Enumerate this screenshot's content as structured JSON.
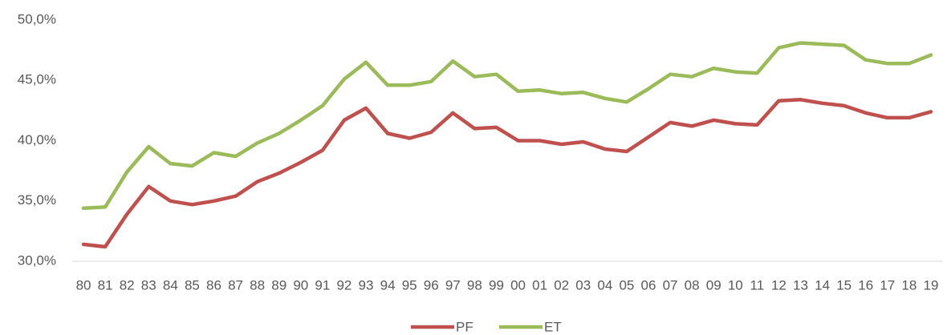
{
  "chart_data": {
    "type": "line",
    "categories": [
      "80",
      "81",
      "82",
      "83",
      "84",
      "85",
      "86",
      "87",
      "88",
      "89",
      "90",
      "91",
      "92",
      "93",
      "94",
      "95",
      "96",
      "97",
      "98",
      "99",
      "00",
      "01",
      "02",
      "03",
      "04",
      "05",
      "06",
      "07",
      "08",
      "09",
      "10",
      "11",
      "12",
      "13",
      "14",
      "15",
      "16",
      "17",
      "18",
      "19"
    ],
    "series": [
      {
        "name": "PF",
        "color": "#c0504d",
        "values": [
          31.4,
          31.2,
          33.9,
          36.2,
          35.0,
          34.7,
          35.0,
          35.4,
          36.6,
          37.3,
          38.2,
          39.2,
          41.7,
          42.7,
          40.6,
          40.2,
          40.7,
          42.3,
          41.0,
          41.1,
          40.0,
          40.0,
          39.7,
          39.9,
          39.3,
          39.1,
          40.3,
          41.5,
          41.2,
          41.7,
          41.4,
          41.3,
          43.3,
          43.4,
          43.1,
          42.9,
          42.3,
          41.9,
          41.9,
          42.4
        ]
      },
      {
        "name": "ET",
        "color": "#9bbb59",
        "values": [
          34.4,
          34.5,
          37.4,
          39.5,
          38.1,
          37.9,
          39.0,
          38.7,
          39.8,
          40.6,
          41.7,
          42.9,
          45.1,
          46.5,
          44.6,
          44.6,
          44.9,
          46.6,
          45.3,
          45.5,
          44.1,
          44.2,
          43.9,
          44.0,
          43.5,
          43.2,
          44.3,
          45.5,
          45.3,
          46.0,
          45.7,
          45.6,
          47.7,
          48.1,
          48.0,
          47.9,
          46.7,
          46.4,
          46.4,
          47.1
        ]
      }
    ],
    "ylim": [
      30,
      50
    ],
    "yticks": [
      {
        "value": 30,
        "label": "30,0%"
      },
      {
        "value": 35,
        "label": "35,0%"
      },
      {
        "value": 40,
        "label": "40,0%"
      },
      {
        "value": 45,
        "label": "45,0%"
      },
      {
        "value": 50,
        "label": "50,0%"
      }
    ],
    "grid": false,
    "legend": "bottom"
  }
}
